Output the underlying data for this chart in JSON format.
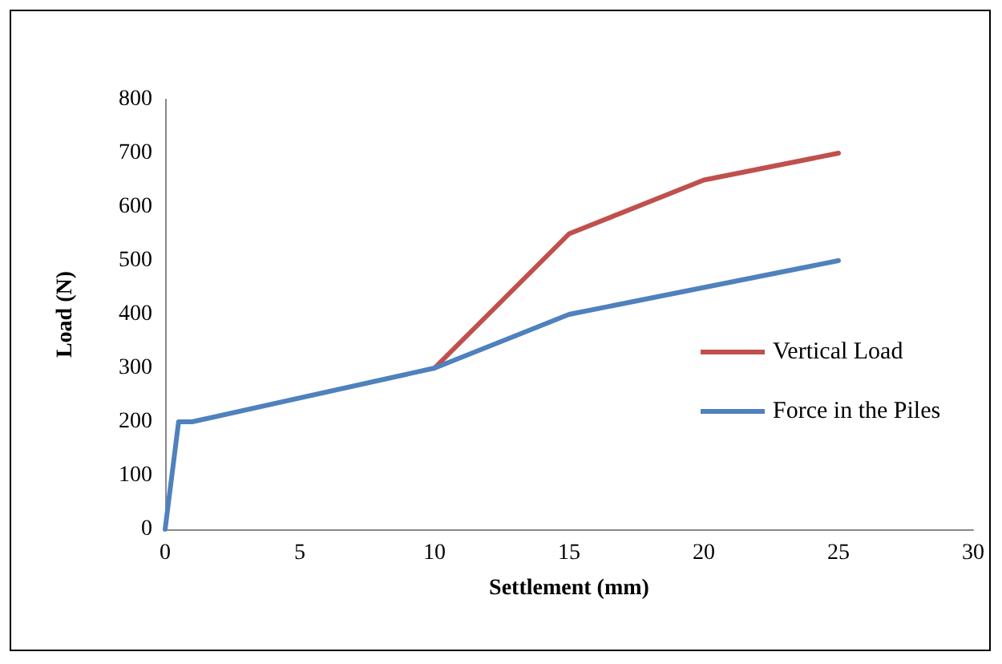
{
  "chart_data": {
    "type": "line",
    "xlabel": "Settlement (mm)",
    "ylabel": "Load (N)",
    "xlim": [
      0,
      30
    ],
    "xticks": [
      0,
      5,
      10,
      15,
      20,
      25,
      30
    ],
    "ylim": [
      0,
      800
    ],
    "yticks": [
      0,
      100,
      200,
      300,
      400,
      500,
      600,
      700,
      800
    ],
    "grid": false,
    "legend": "right",
    "marker": "none",
    "line_style": "solid",
    "series": [
      {
        "name": "Vertical Load",
        "color": "#c0504d",
        "x": [
          10,
          15,
          20,
          25
        ],
        "values": [
          300,
          550,
          650,
          700
        ]
      },
      {
        "name": "Force in the Piles",
        "color": "#4f81bd",
        "x": [
          0,
          0.5,
          1,
          10,
          15,
          20,
          25
        ],
        "values": [
          0,
          200,
          200,
          300,
          400,
          450,
          500
        ]
      }
    ]
  }
}
